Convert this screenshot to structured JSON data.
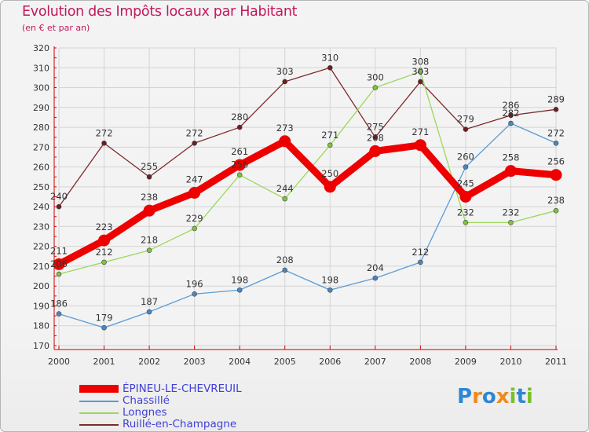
{
  "header": {
    "title": "Evolution des Impôts locaux par Habitant",
    "subtitle": "(en € et par an)"
  },
  "logo": {
    "letters": [
      "P",
      "r",
      "o",
      "x",
      "i",
      "t",
      "i"
    ],
    "colors": [
      "#2f86d6",
      "#f08a1c",
      "#2f86d6",
      "#f08a1c",
      "#7cbf2a",
      "#2f86d6",
      "#7cbf2a"
    ]
  },
  "chart_data": {
    "type": "line",
    "title": "Evolution des Impôts locaux par Habitant",
    "subtitle": "(en € et par an)",
    "xlabel": "",
    "ylabel": "",
    "ylim": [
      170,
      320
    ],
    "ytick_step": 10,
    "grid": true,
    "legend_position": "bottom-left",
    "categories": [
      "2000",
      "2001",
      "2002",
      "2003",
      "2004",
      "2005",
      "2006",
      "2007",
      "2008",
      "2009",
      "2010",
      "2011"
    ],
    "series": [
      {
        "name": "ÉPINEU-LE-CHEVREUIL",
        "color": "#ee0000",
        "emphasis": true,
        "values": [
          211,
          223,
          238,
          247,
          261,
          273,
          250,
          268,
          271,
          245,
          258,
          256
        ],
        "labels": [
          "211",
          "223",
          "238",
          "247",
          "261",
          "273",
          "250",
          "268",
          "271",
          "245",
          "258",
          "256"
        ]
      },
      {
        "name": "Chassillé",
        "color": "#5b9bd5",
        "values": [
          186,
          179,
          187,
          196,
          198,
          208,
          198,
          204,
          212,
          260,
          282,
          272
        ],
        "labels": [
          "186",
          "179",
          "187",
          "196",
          "198",
          "208",
          "198",
          "204",
          "212",
          "260",
          "282",
          "272"
        ]
      },
      {
        "name": "Longnes",
        "color": "#9ad85a",
        "values": [
          206,
          212,
          218,
          229,
          256,
          244,
          271,
          300,
          308,
          232,
          232,
          238
        ],
        "labels": [
          "206",
          "212",
          "218",
          "229",
          "256",
          "244",
          "271",
          "300",
          "308",
          "232",
          "232",
          "238"
        ]
      },
      {
        "name": "Ruillé-en-Champagne",
        "color": "#7b2a2a",
        "values": [
          240,
          272,
          255,
          272,
          280,
          303,
          310,
          275,
          303,
          279,
          286,
          289
        ],
        "labels": [
          "240",
          "272",
          "255",
          "272",
          "280",
          "303",
          "310",
          "275",
          "303",
          "279",
          "286",
          "289"
        ]
      }
    ]
  }
}
